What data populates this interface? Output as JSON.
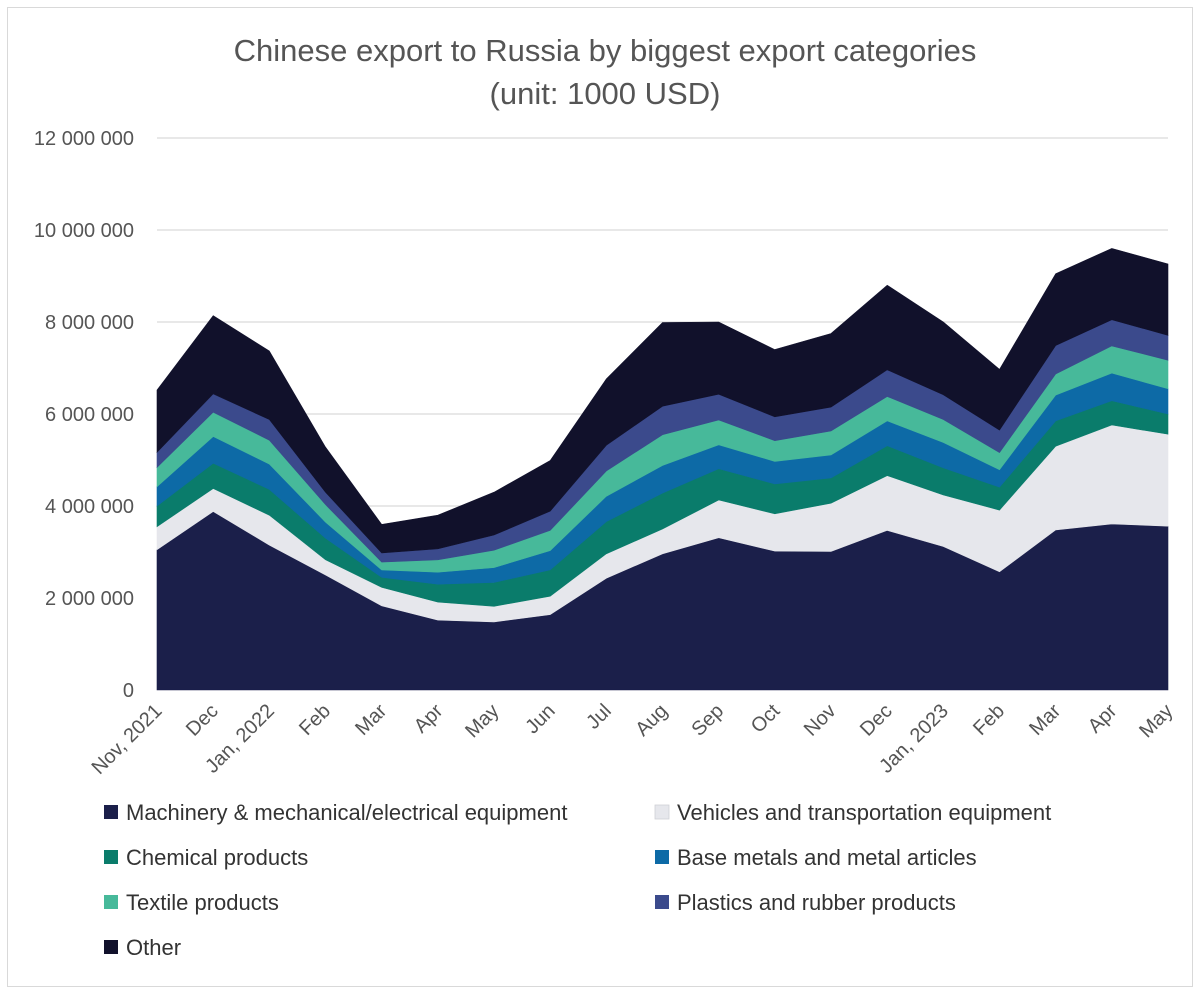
{
  "chart_data": {
    "type": "area",
    "stacked": true,
    "title": "Chinese export to Russia by biggest export categories",
    "subtitle": "(unit: 1000 USD)",
    "ylim": [
      0,
      12000000
    ],
    "yticks": [
      0,
      2000000,
      4000000,
      6000000,
      8000000,
      10000000,
      12000000
    ],
    "ytick_labels": [
      "0",
      "2 000 000",
      "4 000 000",
      "6 000 000",
      "8 000 000",
      "10 000 000",
      "12 000 000"
    ],
    "grid": true,
    "legend_position": "bottom",
    "categories": [
      "Nov, 2021",
      "Dec",
      "Jan, 2022",
      "Feb",
      "Mar",
      "Apr",
      "May",
      "Jun",
      "Jul",
      "Aug",
      "Sep",
      "Oct",
      "Nov",
      "Dec",
      "Jan, 2023",
      "Feb",
      "Mar",
      "Apr",
      "May"
    ],
    "series": [
      {
        "name": "Machinery & mechanical/electrical equipment",
        "color": "#1b1f4a",
        "values": [
          3050000,
          3880000,
          3150000,
          2500000,
          1830000,
          1520000,
          1480000,
          1640000,
          2430000,
          2960000,
          3310000,
          3020000,
          3010000,
          3470000,
          3120000,
          2570000,
          3480000,
          3610000,
          3560000
        ]
      },
      {
        "name": "Vehicles and transportation equipment",
        "color": "#e6e7ec",
        "values": [
          500000,
          500000,
          650000,
          330000,
          400000,
          390000,
          340000,
          400000,
          530000,
          540000,
          820000,
          810000,
          1050000,
          1190000,
          1120000,
          1340000,
          1820000,
          2150000,
          2000000
        ]
      },
      {
        "name": "Chemical products",
        "color": "#0a7c6b",
        "values": [
          450000,
          550000,
          560000,
          470000,
          220000,
          390000,
          520000,
          570000,
          700000,
          780000,
          680000,
          650000,
          550000,
          650000,
          590000,
          500000,
          550000,
          530000,
          440000
        ]
      },
      {
        "name": "Base metals and metal articles",
        "color": "#0d6aa6",
        "values": [
          420000,
          580000,
          550000,
          350000,
          160000,
          260000,
          320000,
          420000,
          550000,
          600000,
          520000,
          490000,
          500000,
          540000,
          550000,
          380000,
          560000,
          600000,
          550000
        ]
      },
      {
        "name": "Textile products",
        "color": "#47b99a",
        "values": [
          420000,
          530000,
          520000,
          380000,
          170000,
          270000,
          380000,
          440000,
          550000,
          670000,
          540000,
          450000,
          520000,
          530000,
          500000,
          370000,
          460000,
          590000,
          620000
        ]
      },
      {
        "name": "Plastics and rubber products",
        "color": "#3b4a8c",
        "values": [
          330000,
          400000,
          450000,
          270000,
          200000,
          240000,
          330000,
          420000,
          560000,
          620000,
          560000,
          520000,
          520000,
          580000,
          540000,
          490000,
          620000,
          570000,
          540000
        ]
      },
      {
        "name": "Other",
        "color": "#11112b",
        "values": [
          1350000,
          1700000,
          1490000,
          980000,
          620000,
          730000,
          930000,
          1100000,
          1440000,
          1820000,
          1570000,
          1460000,
          1600000,
          1840000,
          1580000,
          1320000,
          1560000,
          1550000,
          1550000
        ]
      }
    ]
  }
}
